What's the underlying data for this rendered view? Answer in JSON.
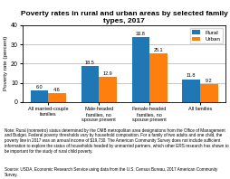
{
  "chart_data": {
    "type": "bar",
    "title": "Poverty rates in rural and urban areas by selected family types, 2017",
    "ylabel": "Poverty rate (percent)",
    "categories": [
      "All married-couple\nfamilies",
      "Male-headed\nfamilies, no\nspouse present",
      "Female-headed\nfamilies, no\nspouse present",
      "All families"
    ],
    "series": [
      {
        "name": "Rural",
        "values": [
          6.0,
          18.5,
          33.8,
          11.8
        ]
      },
      {
        "name": "Urban",
        "values": [
          4.6,
          12.9,
          25.1,
          9.2
        ]
      }
    ],
    "ylim": [
      0,
      40
    ],
    "yticks": [
      0,
      10,
      20,
      30,
      40
    ],
    "grid": true,
    "legend": "upper right",
    "data_labels": true,
    "annotations": [
      "Note: Rural (nonmetro) status determined by the OMB metropolitan area designations from the Office of Management and Budget. Federal poverty thresholds vary by household composition. For a family of two adults and one child, the poverty line in 2017 was an annual income of $19,730. The American Community Survey does not include sufficient information to explore the status of households headed by unmarried partners, which other ERS research has shown to be important for the study of rural child poverty.",
      "Source: USDA, Economic Research Service using data from the U.S. Census Bureau, 2017 American Community Survey."
    ]
  }
}
